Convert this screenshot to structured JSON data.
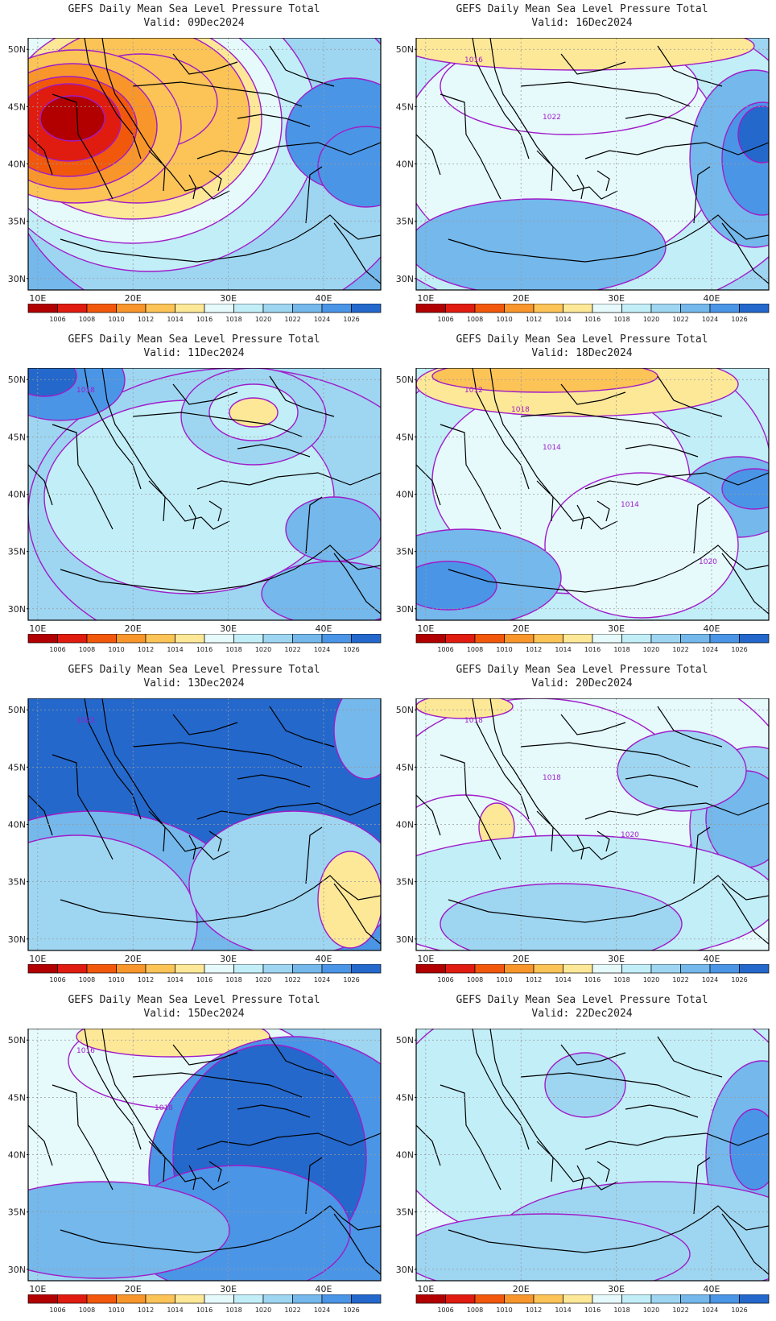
{
  "panels": [
    {
      "title": "GEFS Daily Mean Sea Level Pressure Total",
      "valid": "Valid: 09Dec2024",
      "contour_labels": []
    },
    {
      "title": "GEFS Daily Mean Sea Level Pressure Total",
      "valid": "Valid: 16Dec2024",
      "contour_labels": [
        "1016",
        "1022"
      ]
    },
    {
      "title": "GEFS Daily Mean Sea Level Pressure Total",
      "valid": "Valid: 11Dec2024",
      "contour_labels": [
        "1018"
      ]
    },
    {
      "title": "GEFS Daily Mean Sea Level Pressure Total",
      "valid": "Valid: 18Dec2024",
      "contour_labels": [
        "1012",
        "1014",
        "1014",
        "1020",
        "1018"
      ]
    },
    {
      "title": "GEFS Daily Mean Sea Level Pressure Total",
      "valid": "Valid: 13Dec2024",
      "contour_labels": [
        "1022"
      ]
    },
    {
      "title": "GEFS Daily Mean Sea Level Pressure Total",
      "valid": "Valid: 20Dec2024",
      "contour_labels": [
        "1018",
        "1018",
        "1020"
      ]
    },
    {
      "title": "GEFS Daily Mean Sea Level Pressure Total",
      "valid": "Valid: 15Dec2024",
      "contour_labels": [
        "1016",
        "1018"
      ]
    },
    {
      "title": "GEFS Daily Mean Sea Level Pressure Total",
      "valid": "Valid: 22Dec2024",
      "contour_labels": []
    }
  ],
  "lat_labels": [
    "50N",
    "45N",
    "40N",
    "35N",
    "30N"
  ],
  "lat_values": [
    50,
    45,
    40,
    35,
    30
  ],
  "lon_labels": [
    "10E",
    "20E",
    "30E",
    "40E"
  ],
  "lon_values": [
    10,
    20,
    30,
    40
  ],
  "map_extent": {
    "lon": [
      9,
      46
    ],
    "lat": [
      29,
      51
    ]
  },
  "colorbar": {
    "labels": [
      "1006",
      "1008",
      "1010",
      "1012",
      "1014",
      "1016",
      "1018",
      "1020",
      "1022",
      "1024",
      "1026"
    ],
    "colors": [
      "#b20000",
      "#e01b10",
      "#f2580c",
      "#f8962c",
      "#fcc357",
      "#fde898",
      "#e6fafc",
      "#c2eef8",
      "#9ed6f2",
      "#74b8ec",
      "#4a95e6",
      "#2468cc"
    ]
  },
  "colors": {
    "contour": "#a01cc8",
    "coast": "#000000",
    "grid": "#9a9a9a"
  }
}
